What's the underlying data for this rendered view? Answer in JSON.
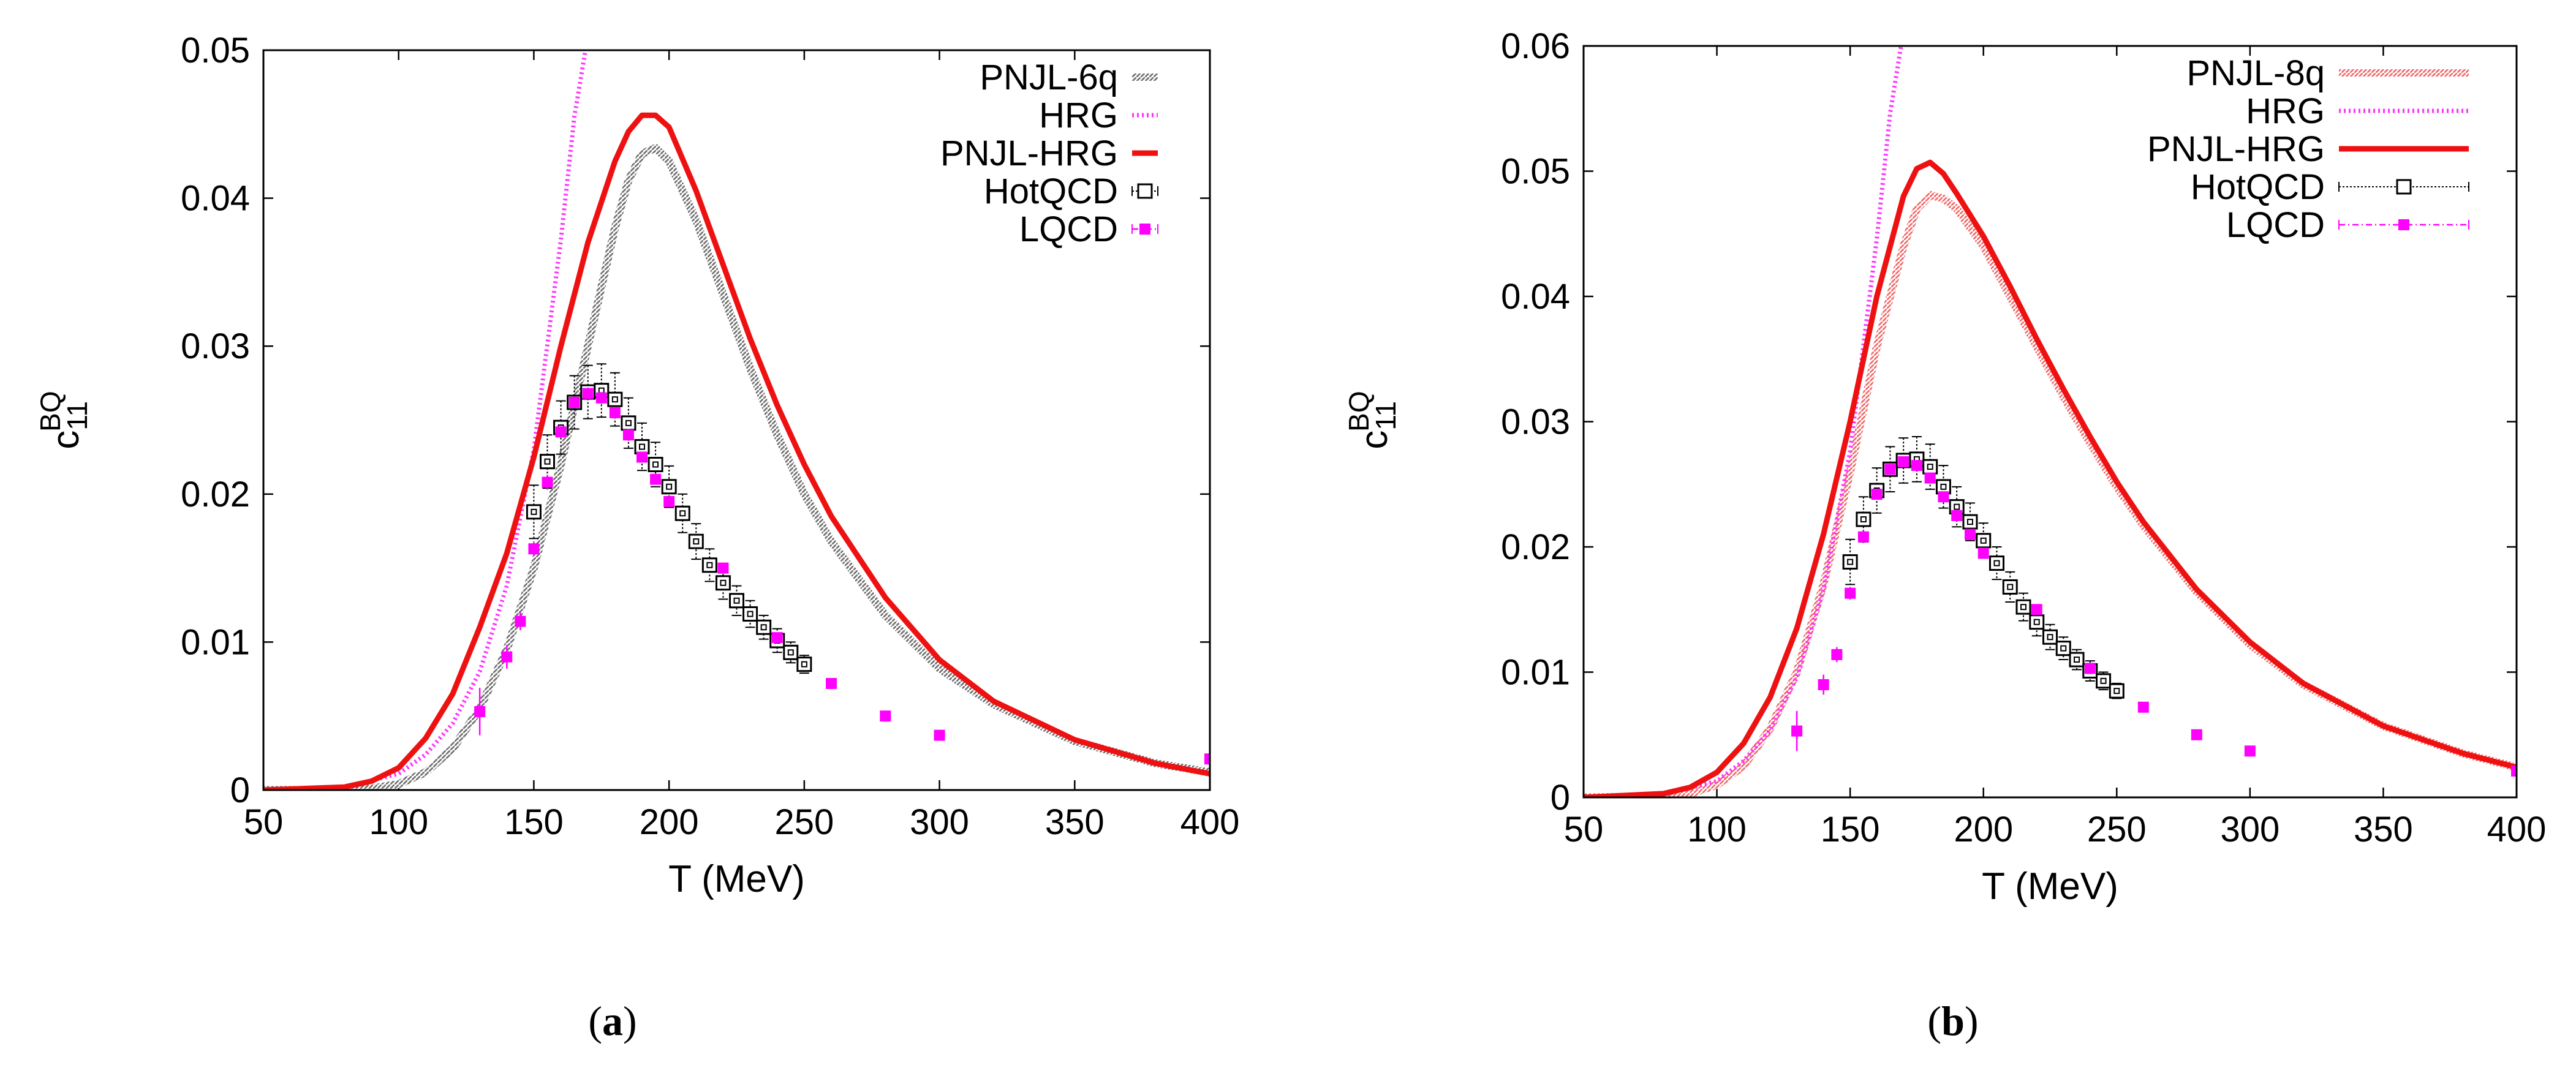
{
  "chart_data": [
    {
      "type": "line",
      "panel_caption": {
        "open": "(",
        "letter": "a",
        "close": ")"
      },
      "xlabel": "T (MeV)",
      "ylabel_main": "c",
      "ylabel_sub": "11",
      "ylabel_sup": "BQ",
      "xlim": [
        50,
        400
      ],
      "ylim": [
        0,
        0.05
      ],
      "x_ticks": [
        50,
        100,
        150,
        200,
        250,
        300,
        350,
        400
      ],
      "y_ticks": [
        0,
        0.01,
        0.02,
        0.03,
        0.04,
        0.05
      ],
      "x_tick_labels": [
        "50",
        "100",
        "150",
        "200",
        "250",
        "300",
        "350",
        "400"
      ],
      "y_tick_labels": [
        "0",
        "0.01",
        "0.02",
        "0.03",
        "0.04",
        "0.05"
      ],
      "legend_position": "top-right",
      "series": [
        {
          "name": "PNJL-6q",
          "style": "hatched",
          "color": "#8c8c8c",
          "x": [
            50,
            80,
            90,
            100,
            110,
            120,
            130,
            140,
            150,
            160,
            170,
            180,
            185,
            190,
            195,
            200,
            210,
            220,
            230,
            240,
            250,
            260,
            280,
            300,
            320,
            350,
            380,
            400
          ],
          "y": [
            0,
            0,
            0.0001,
            0.0004,
            0.0012,
            0.0028,
            0.0055,
            0.0095,
            0.015,
            0.022,
            0.03,
            0.038,
            0.0412,
            0.043,
            0.0434,
            0.0425,
            0.0385,
            0.0335,
            0.0285,
            0.024,
            0.02,
            0.0168,
            0.0118,
            0.0082,
            0.0058,
            0.0033,
            0.0018,
            0.0012
          ]
        },
        {
          "name": "HRG",
          "style": "dotted",
          "color": "#ff33ff",
          "x": [
            50,
            80,
            100,
            110,
            120,
            130,
            140,
            150,
            160,
            165,
            170
          ],
          "y": [
            0,
            0.0002,
            0.0011,
            0.0024,
            0.0045,
            0.008,
            0.0138,
            0.023,
            0.0372,
            0.0455,
            0.051
          ]
        },
        {
          "name": "PNJL-HRG",
          "style": "solid",
          "color": "#ee1111",
          "x": [
            50,
            80,
            90,
            100,
            110,
            120,
            130,
            140,
            150,
            160,
            170,
            180,
            185,
            190,
            195,
            200,
            210,
            220,
            230,
            240,
            250,
            260,
            280,
            300,
            320,
            350,
            380,
            400
          ],
          "y": [
            0,
            0.0002,
            0.0006,
            0.0015,
            0.0035,
            0.0065,
            0.011,
            0.016,
            0.0225,
            0.03,
            0.037,
            0.0425,
            0.0445,
            0.0456,
            0.0456,
            0.0448,
            0.0405,
            0.0355,
            0.0305,
            0.026,
            0.022,
            0.0185,
            0.013,
            0.0088,
            0.006,
            0.0034,
            0.0018,
            0.0011
          ]
        },
        {
          "name": "HotQCD",
          "style": "open-squares-errorbars",
          "color": "#000000",
          "x": [
            150,
            155,
            160,
            165,
            170,
            175,
            180,
            185,
            190,
            195,
            200,
            205,
            210,
            215,
            220,
            225,
            230,
            235,
            240,
            245,
            250
          ],
          "y": [
            0.0188,
            0.0222,
            0.0245,
            0.0262,
            0.0269,
            0.027,
            0.0264,
            0.0248,
            0.0232,
            0.022,
            0.0205,
            0.0187,
            0.0168,
            0.0152,
            0.014,
            0.0128,
            0.0119,
            0.011,
            0.0101,
            0.0093,
            0.0085
          ],
          "err": [
            0.0018,
            0.0018,
            0.0018,
            0.0018,
            0.0018,
            0.0018,
            0.0018,
            0.0017,
            0.0016,
            0.0015,
            0.0014,
            0.0013,
            0.0012,
            0.0011,
            0.0011,
            0.001,
            0.0009,
            0.0008,
            0.0008,
            0.0007,
            0.0006
          ]
        },
        {
          "name": "LQCD",
          "style": "filled-squares",
          "color": "#ff00ff",
          "x": [
            130,
            140,
            145,
            150,
            155,
            160,
            165,
            170,
            175,
            180,
            185,
            190,
            195,
            200,
            220,
            240,
            260,
            280,
            300,
            400
          ],
          "y": [
            0.0053,
            0.009,
            0.0114,
            0.0163,
            0.0208,
            0.0242,
            0.0262,
            0.0268,
            0.0265,
            0.0255,
            0.024,
            0.0225,
            0.021,
            0.0195,
            0.015,
            0.0103,
            0.0072,
            0.005,
            0.0037,
            0.0021
          ],
          "err": [
            0.0016,
            0.0008,
            0.0006,
            0.0005,
            0.0005,
            0.0004,
            0.0004,
            0.0004,
            0.0004,
            0.0004,
            0.0004,
            0.0003,
            0.0003,
            0.0003,
            0.0003,
            0.0002,
            0.0002,
            0.0002,
            0.0001,
            0.0001
          ]
        }
      ]
    },
    {
      "type": "line",
      "panel_caption": {
        "open": "(",
        "letter": "b",
        "close": ")"
      },
      "xlabel": "T (MeV)",
      "ylabel_main": "c",
      "ylabel_sub": "11",
      "ylabel_sup": "BQ",
      "xlim": [
        50,
        400
      ],
      "ylim": [
        0,
        0.06
      ],
      "x_ticks": [
        50,
        100,
        150,
        200,
        250,
        300,
        350,
        400
      ],
      "y_ticks": [
        0,
        0.01,
        0.02,
        0.03,
        0.04,
        0.05,
        0.06
      ],
      "x_tick_labels": [
        "50",
        "100",
        "150",
        "200",
        "250",
        "300",
        "350",
        "400"
      ],
      "y_tick_labels": [
        "0",
        "0.01",
        "0.02",
        "0.03",
        "0.04",
        "0.05",
        "0.06"
      ],
      "legend_position": "top-right",
      "series": [
        {
          "name": "PNJL-8q",
          "style": "hatched",
          "color": "#f08080",
          "x": [
            50,
            80,
            90,
            100,
            110,
            120,
            130,
            140,
            150,
            160,
            170,
            175,
            180,
            185,
            190,
            200,
            210,
            220,
            230,
            240,
            250,
            260,
            280,
            300,
            320,
            350,
            380,
            400
          ],
          "y": [
            0,
            0.0001,
            0.0003,
            0.001,
            0.0025,
            0.0055,
            0.01,
            0.017,
            0.026,
            0.036,
            0.044,
            0.047,
            0.0481,
            0.0478,
            0.047,
            0.044,
            0.04,
            0.036,
            0.032,
            0.0283,
            0.0248,
            0.0217,
            0.0164,
            0.0122,
            0.009,
            0.0057,
            0.0035,
            0.0024
          ]
        },
        {
          "name": "HRG",
          "style": "dotted",
          "color": "#ff33ff",
          "x": [
            50,
            80,
            100,
            110,
            120,
            130,
            140,
            150,
            160,
            165,
            170,
            172
          ],
          "y": [
            0,
            0.0002,
            0.0013,
            0.0029,
            0.0054,
            0.0096,
            0.0166,
            0.0276,
            0.0446,
            0.0546,
            0.0612,
            0.063
          ]
        },
        {
          "name": "PNJL-HRG",
          "style": "solid",
          "color": "#ee1111",
          "x": [
            50,
            80,
            90,
            100,
            110,
            120,
            130,
            140,
            150,
            160,
            170,
            175,
            180,
            185,
            190,
            200,
            210,
            220,
            230,
            240,
            250,
            260,
            280,
            300,
            320,
            350,
            380,
            400
          ],
          "y": [
            0,
            0.0003,
            0.0008,
            0.002,
            0.0043,
            0.008,
            0.0135,
            0.021,
            0.03,
            0.04,
            0.048,
            0.0502,
            0.0507,
            0.0498,
            0.0482,
            0.0448,
            0.0408,
            0.0366,
            0.0326,
            0.0288,
            0.0252,
            0.022,
            0.0166,
            0.0124,
            0.0091,
            0.0057,
            0.0035,
            0.0024
          ]
        },
        {
          "name": "HotQCD",
          "style": "open-squares-errorbars",
          "color": "#000000",
          "x": [
            150,
            155,
            160,
            165,
            170,
            175,
            180,
            185,
            190,
            195,
            200,
            205,
            210,
            215,
            220,
            225,
            230,
            235,
            240,
            245,
            250
          ],
          "y": [
            0.0188,
            0.0222,
            0.0245,
            0.0262,
            0.0269,
            0.027,
            0.0264,
            0.0248,
            0.0232,
            0.022,
            0.0205,
            0.0187,
            0.0168,
            0.0152,
            0.014,
            0.0128,
            0.0119,
            0.011,
            0.0101,
            0.0093,
            0.0085
          ],
          "err": [
            0.0018,
            0.0018,
            0.0018,
            0.0018,
            0.0018,
            0.0018,
            0.0018,
            0.0017,
            0.0016,
            0.0015,
            0.0014,
            0.0013,
            0.0012,
            0.0011,
            0.0011,
            0.001,
            0.0009,
            0.0008,
            0.0008,
            0.0007,
            0.0006
          ]
        },
        {
          "name": "LQCD",
          "style": "filled-squares",
          "color": "#ff00ff",
          "x": [
            130,
            140,
            145,
            150,
            155,
            160,
            165,
            170,
            175,
            180,
            185,
            190,
            195,
            200,
            220,
            240,
            260,
            280,
            300,
            400
          ],
          "y": [
            0.0053,
            0.009,
            0.0114,
            0.0163,
            0.0208,
            0.0242,
            0.0262,
            0.0268,
            0.0265,
            0.0255,
            0.024,
            0.0225,
            0.021,
            0.0195,
            0.015,
            0.0103,
            0.0072,
            0.005,
            0.0037,
            0.0021
          ],
          "err": [
            0.0016,
            0.0008,
            0.0006,
            0.0005,
            0.0005,
            0.0004,
            0.0004,
            0.0004,
            0.0004,
            0.0004,
            0.0004,
            0.0003,
            0.0003,
            0.0003,
            0.0003,
            0.0002,
            0.0002,
            0.0002,
            0.0001,
            0.0001
          ]
        }
      ]
    }
  ]
}
